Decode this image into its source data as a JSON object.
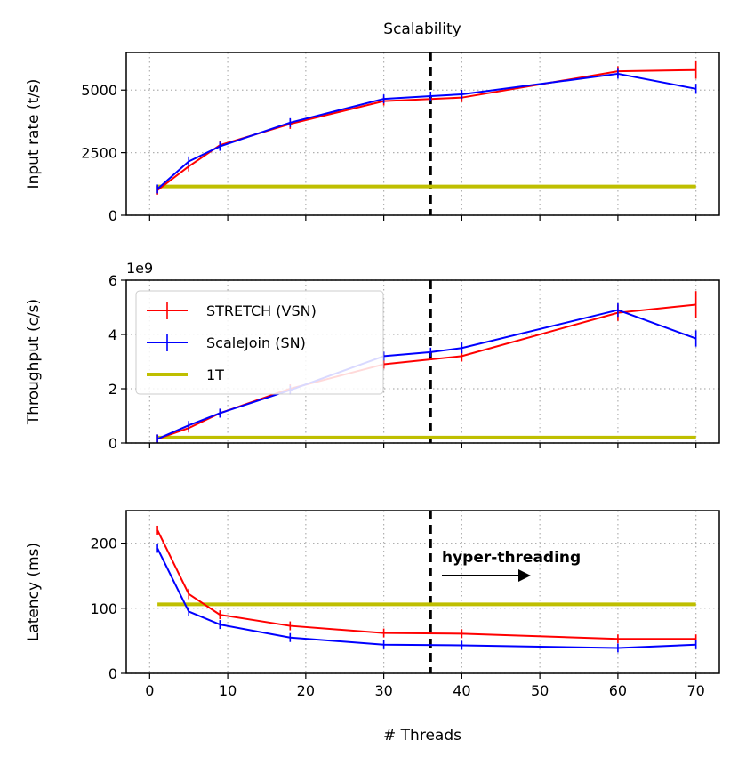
{
  "figure": {
    "title": "Scalability",
    "xlabel": "# Threads",
    "vline_x": 36,
    "annotation": "hyper-threading"
  },
  "colors": {
    "stretch": "#ff0000",
    "scalejoin": "#0000ff",
    "one_t": "#bfbf00",
    "grid": "#b0b0b0",
    "vline": "#000000"
  },
  "chart_data": [
    {
      "type": "line",
      "id": "input-rate",
      "ylabel": "Input rate (t/s)",
      "xlim": [
        -3,
        73
      ],
      "ylim": [
        0,
        6500
      ],
      "xticks": [
        0,
        10,
        20,
        30,
        40,
        50,
        60,
        70
      ],
      "yticks": [
        0,
        2500,
        5000
      ],
      "ytick_labels": [
        "0",
        "2500",
        "5000"
      ],
      "show_xtick_labels": false,
      "offset_text": "",
      "series": [
        {
          "name": "STRETCH (VSN)",
          "color_key": "stretch",
          "x": [
            1,
            5,
            9,
            18,
            30,
            40,
            60,
            70
          ],
          "y": [
            1000,
            1950,
            2800,
            3650,
            4560,
            4700,
            5750,
            5800
          ],
          "err": [
            0,
            200,
            0,
            200,
            100,
            100,
            200,
            350
          ]
        },
        {
          "name": "ScaleJoin (SN)",
          "color_key": "scalejoin",
          "x": [
            1,
            5,
            9,
            18,
            30,
            36,
            40,
            60,
            70
          ],
          "y": [
            1050,
            2150,
            2750,
            3700,
            4650,
            4760,
            4830,
            5650,
            5050
          ],
          "err": [
            0,
            200,
            0,
            0,
            100,
            100,
            150,
            200,
            200
          ]
        },
        {
          "name": "1T",
          "color_key": "one_t",
          "x": [
            1,
            70
          ],
          "y": [
            1150,
            1150
          ],
          "err": [
            0,
            0
          ]
        }
      ]
    },
    {
      "type": "line",
      "id": "throughput",
      "ylabel": "Throughput (c/s)",
      "xlim": [
        -3,
        73
      ],
      "ylim": [
        0,
        6
      ],
      "xticks": [
        0,
        10,
        20,
        30,
        40,
        50,
        60,
        70
      ],
      "yticks": [
        0,
        2,
        4,
        6
      ],
      "ytick_labels": [
        "0",
        "2",
        "4",
        "6"
      ],
      "show_xtick_labels": false,
      "offset_text": "1e9",
      "series": [
        {
          "name": "STRETCH (VSN)",
          "color_key": "stretch",
          "x": [
            1,
            5,
            9,
            18,
            30,
            40,
            60,
            70
          ],
          "y": [
            0.15,
            0.55,
            1.1,
            2.0,
            2.9,
            3.2,
            4.8,
            5.1
          ],
          "err": [
            0,
            0.1,
            0,
            0.15,
            0.1,
            0.2,
            0.3,
            0.5
          ]
        },
        {
          "name": "ScaleJoin (SN)",
          "color_key": "scalejoin",
          "x": [
            1,
            5,
            9,
            18,
            30,
            36,
            40,
            60,
            70
          ],
          "y": [
            0.15,
            0.65,
            1.1,
            1.95,
            3.2,
            3.35,
            3.5,
            4.9,
            3.85
          ],
          "err": [
            0,
            0.1,
            0,
            0,
            0.1,
            0.1,
            0.2,
            0.25,
            0.3
          ]
        },
        {
          "name": "1T",
          "color_key": "one_t",
          "x": [
            1,
            70
          ],
          "y": [
            0.2,
            0.2
          ],
          "err": [
            0,
            0
          ]
        }
      ]
    },
    {
      "type": "line",
      "id": "latency",
      "ylabel": "Latency (ms)",
      "xlim": [
        -3,
        73
      ],
      "ylim": [
        0,
        250
      ],
      "xticks": [
        0,
        10,
        20,
        30,
        40,
        50,
        60,
        70
      ],
      "yticks": [
        0,
        100,
        200
      ],
      "ytick_labels": [
        "0",
        "100",
        "200"
      ],
      "show_xtick_labels": true,
      "xtick_labels": [
        "0",
        "10",
        "20",
        "30",
        "40",
        "50",
        "60",
        "70"
      ],
      "offset_text": "",
      "series": [
        {
          "name": "STRETCH (VSN)",
          "color_key": "stretch",
          "x": [
            1,
            5,
            9,
            18,
            30,
            40,
            60,
            70
          ],
          "y": [
            220,
            122,
            90,
            73,
            62,
            61,
            53,
            53
          ],
          "err": [
            0,
            8,
            0,
            3,
            0,
            0,
            0,
            0
          ]
        },
        {
          "name": "ScaleJoin (SN)",
          "color_key": "scalejoin",
          "x": [
            1,
            5,
            9,
            18,
            30,
            40,
            60,
            70
          ],
          "y": [
            192,
            95,
            75,
            55,
            44,
            43,
            39,
            44
          ],
          "err": [
            0,
            4,
            0,
            0,
            0,
            0,
            0,
            0
          ]
        },
        {
          "name": "1T",
          "color_key": "one_t",
          "x": [
            1,
            70
          ],
          "y": [
            106,
            106
          ],
          "err": [
            0,
            0
          ]
        }
      ]
    }
  ],
  "legend": {
    "entries": [
      "STRETCH (VSN)",
      "ScaleJoin (SN)",
      "1T"
    ]
  }
}
